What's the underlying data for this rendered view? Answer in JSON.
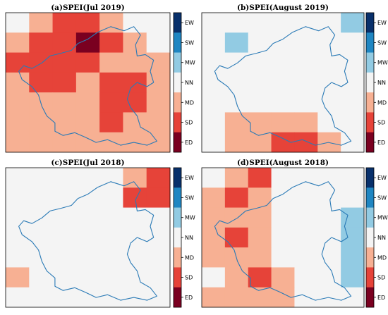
{
  "chart_data": [
    {
      "type": "heatmap",
      "title": "(a)SPEI(Jul 2019)",
      "legend": [
        "EW",
        "SW",
        "MW",
        "NN",
        "MD",
        "SD",
        "ED"
      ],
      "grid": [
        [
          "NN",
          "MD",
          "SD",
          "SD",
          "MD",
          "NN",
          "NN"
        ],
        [
          "MD",
          "SD",
          "SD",
          "ED",
          "SD",
          "MD",
          "NN"
        ],
        [
          "SD",
          "SD",
          "SD",
          "SD",
          "MD",
          "MD",
          "MD"
        ],
        [
          "MD",
          "SD",
          "SD",
          "MD",
          "SD",
          "SD",
          "MD"
        ],
        [
          "MD",
          "MD",
          "MD",
          "MD",
          "SD",
          "SD",
          "MD"
        ],
        [
          "MD",
          "MD",
          "MD",
          "MD",
          "SD",
          "MD",
          "MD"
        ],
        [
          "MD",
          "MD",
          "MD",
          "MD",
          "MD",
          "MD",
          "MD"
        ]
      ]
    },
    {
      "type": "heatmap",
      "title": "(b)SPEI(August 2019)",
      "legend": [
        "EW",
        "SW",
        "MW",
        "NN",
        "MD",
        "SD",
        "ED"
      ],
      "grid": [
        [
          "NN",
          "NN",
          "NN",
          "NN",
          "NN",
          "NN",
          "MW"
        ],
        [
          "NN",
          "MW",
          "NN",
          "NN",
          "NN",
          "NN",
          "NN"
        ],
        [
          "NN",
          "NN",
          "NN",
          "NN",
          "NN",
          "NN",
          "NN"
        ],
        [
          "NN",
          "NN",
          "NN",
          "NN",
          "NN",
          "NN",
          "NN"
        ],
        [
          "NN",
          "NN",
          "NN",
          "NN",
          "NN",
          "NN",
          "NN"
        ],
        [
          "NN",
          "MD",
          "MD",
          "MD",
          "MD",
          "NN",
          "NN"
        ],
        [
          "NN",
          "MD",
          "MD",
          "SD",
          "SD",
          "MD",
          "NN"
        ]
      ]
    },
    {
      "type": "heatmap",
      "title": "(c)SPEI(Jul 2018)",
      "legend": [
        "EW",
        "SW",
        "MW",
        "NN",
        "MD",
        "SD",
        "ED"
      ],
      "grid": [
        [
          "NN",
          "NN",
          "NN",
          "NN",
          "NN",
          "MD",
          "SD"
        ],
        [
          "NN",
          "NN",
          "NN",
          "NN",
          "NN",
          "SD",
          "SD"
        ],
        [
          "NN",
          "NN",
          "NN",
          "NN",
          "NN",
          "NN",
          "NN"
        ],
        [
          "NN",
          "NN",
          "NN",
          "NN",
          "NN",
          "NN",
          "NN"
        ],
        [
          "NN",
          "NN",
          "NN",
          "NN",
          "NN",
          "NN",
          "NN"
        ],
        [
          "MD",
          "NN",
          "NN",
          "NN",
          "NN",
          "NN",
          "NN"
        ],
        [
          "NN",
          "NN",
          "NN",
          "NN",
          "NN",
          "NN",
          "NN"
        ]
      ]
    },
    {
      "type": "heatmap",
      "title": "(d)SPEI(August 2018)",
      "legend": [
        "EW",
        "SW",
        "MW",
        "NN",
        "MD",
        "SD",
        "ED"
      ],
      "grid": [
        [
          "NN",
          "MD",
          "SD",
          "NN",
          "NN",
          "NN",
          "NN"
        ],
        [
          "MD",
          "SD",
          "MD",
          "NN",
          "NN",
          "NN",
          "NN"
        ],
        [
          "MD",
          "MD",
          "MD",
          "NN",
          "NN",
          "NN",
          "MW"
        ],
        [
          "MD",
          "SD",
          "MD",
          "NN",
          "NN",
          "NN",
          "MW"
        ],
        [
          "MD",
          "MD",
          "MD",
          "NN",
          "NN",
          "NN",
          "MW"
        ],
        [
          "NN",
          "MD",
          "SD",
          "MD",
          "NN",
          "NN",
          "MW"
        ],
        [
          "MD",
          "MD",
          "MD",
          "MD",
          "NN",
          "NN",
          "NN"
        ]
      ]
    }
  ],
  "colors": {
    "EW": "#08306b",
    "SW": "#1f86c2",
    "MW": "#92cbe3",
    "NN": "#f4f4f4",
    "MD": "#f7b093",
    "SD": "#e64339",
    "ED": "#7a0020"
  }
}
